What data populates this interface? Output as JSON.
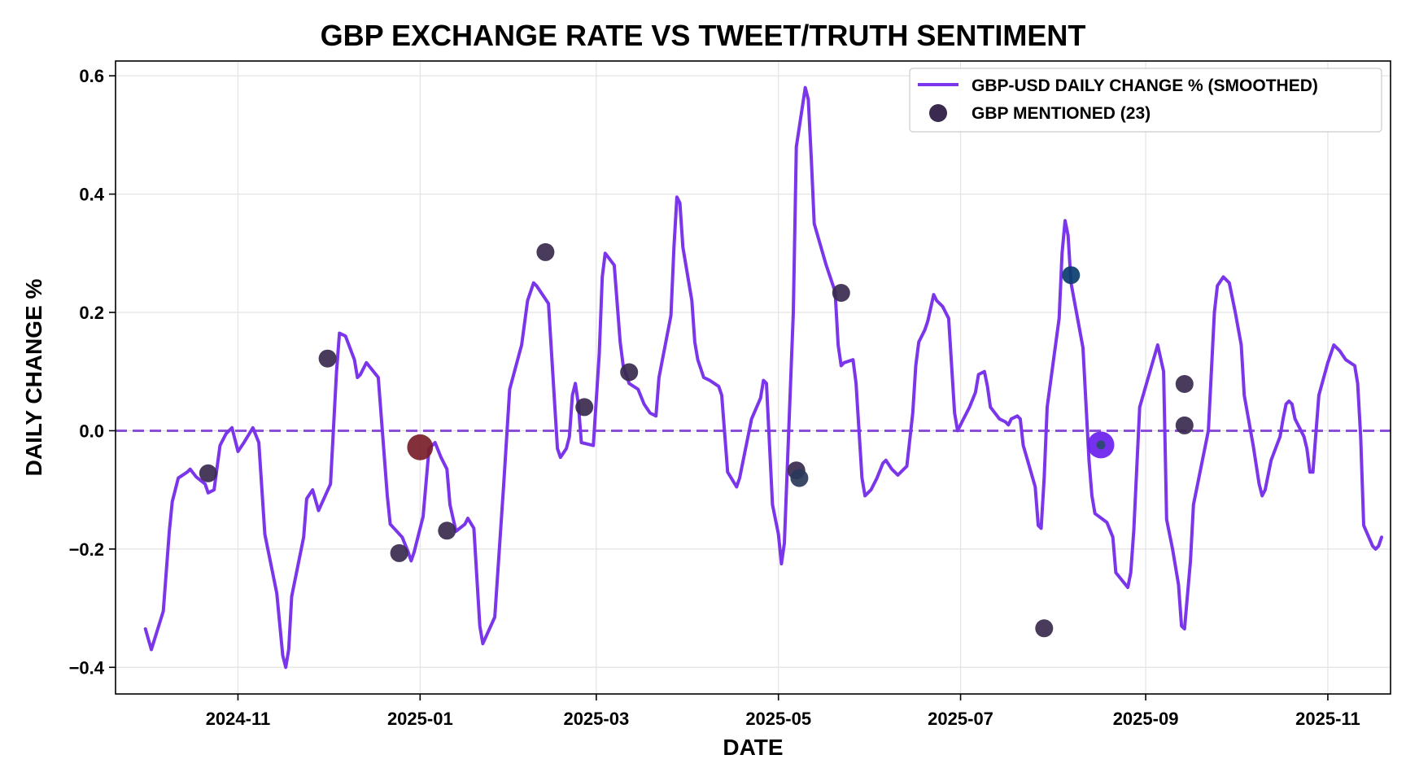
{
  "chart_data": {
    "type": "line",
    "title": "GBP EXCHANGE RATE VS TWEET/TRUTH SENTIMENT",
    "xlabel": "DATE",
    "ylabel": "DAILY CHANGE %",
    "ylim": [
      -0.445,
      0.625
    ],
    "xlim": [
      "2024-09-21",
      "2025-11-22"
    ],
    "grid": true,
    "legend_position": "top-right",
    "x_ticks": [
      {
        "date": "2024-11-01",
        "label": "2024-11"
      },
      {
        "date": "2025-01-01",
        "label": "2025-01"
      },
      {
        "date": "2025-03-01",
        "label": "2025-03"
      },
      {
        "date": "2025-05-01",
        "label": "2025-05"
      },
      {
        "date": "2025-07-01",
        "label": "2025-07"
      },
      {
        "date": "2025-09-01",
        "label": "2025-09"
      },
      {
        "date": "2025-11-01",
        "label": "2025-11"
      }
    ],
    "y_ticks": [
      {
        "value": 0.6,
        "label": "0.6"
      },
      {
        "value": 0.4,
        "label": "0.4"
      },
      {
        "value": 0.2,
        "label": "0.2"
      },
      {
        "value": 0.0,
        "label": "0.0"
      },
      {
        "value": -0.2,
        "label": "−0.2"
      },
      {
        "value": -0.4,
        "label": "−0.4"
      }
    ],
    "reference_line": {
      "y": 0.0,
      "style": "dashed",
      "color": "#8a4fd6"
    },
    "series": [
      {
        "name": "GBP-USD DAILY CHANGE % (SMOOTHED)",
        "legend_label": "GBP-USD DAILY CHANGE % (SMOOTHED)",
        "color": "#7b35ea",
        "points": [
          [
            "2024-10-01",
            -0.335
          ],
          [
            "2024-10-03",
            -0.37
          ],
          [
            "2024-10-07",
            -0.305
          ],
          [
            "2024-10-09",
            -0.17
          ],
          [
            "2024-10-10",
            -0.12
          ],
          [
            "2024-10-12",
            -0.08
          ],
          [
            "2024-10-15",
            -0.07
          ],
          [
            "2024-10-16",
            -0.065
          ],
          [
            "2024-10-18",
            -0.078
          ],
          [
            "2024-10-21",
            -0.09
          ],
          [
            "2024-10-22",
            -0.105
          ],
          [
            "2024-10-24",
            -0.1
          ],
          [
            "2024-10-26",
            -0.025
          ],
          [
            "2024-10-28",
            -0.005
          ],
          [
            "2024-10-30",
            0.005
          ],
          [
            "2024-11-01",
            -0.035
          ],
          [
            "2024-11-03",
            -0.02
          ],
          [
            "2024-11-06",
            0.005
          ],
          [
            "2024-11-08",
            -0.02
          ],
          [
            "2024-11-10",
            -0.175
          ],
          [
            "2024-11-14",
            -0.275
          ],
          [
            "2024-11-16",
            -0.38
          ],
          [
            "2024-11-17",
            -0.4
          ],
          [
            "2024-11-18",
            -0.37
          ],
          [
            "2024-11-19",
            -0.28
          ],
          [
            "2024-11-23",
            -0.18
          ],
          [
            "2024-11-24",
            -0.115
          ],
          [
            "2024-11-26",
            -0.1
          ],
          [
            "2024-11-28",
            -0.135
          ],
          [
            "2024-12-02",
            -0.09
          ],
          [
            "2024-12-04",
            0.1
          ],
          [
            "2024-12-05",
            0.165
          ],
          [
            "2024-12-07",
            0.16
          ],
          [
            "2024-12-10",
            0.12
          ],
          [
            "2024-12-11",
            0.09
          ],
          [
            "2024-12-12",
            0.095
          ],
          [
            "2024-12-14",
            0.115
          ],
          [
            "2024-12-18",
            0.09
          ],
          [
            "2024-12-21",
            -0.11
          ],
          [
            "2024-12-22",
            -0.158
          ],
          [
            "2024-12-26",
            -0.18
          ],
          [
            "2024-12-28",
            -0.205
          ],
          [
            "2024-12-29",
            -0.22
          ],
          [
            "2024-12-30",
            -0.205
          ],
          [
            "2025-01-02",
            -0.145
          ],
          [
            "2025-01-04",
            -0.03
          ],
          [
            "2025-01-06",
            -0.02
          ],
          [
            "2025-01-08",
            -0.045
          ],
          [
            "2025-01-10",
            -0.065
          ],
          [
            "2025-01-11",
            -0.125
          ],
          [
            "2025-01-13",
            -0.17
          ],
          [
            "2025-01-16",
            -0.158
          ],
          [
            "2025-01-17",
            -0.148
          ],
          [
            "2025-01-19",
            -0.165
          ],
          [
            "2025-01-21",
            -0.33
          ],
          [
            "2025-01-22",
            -0.36
          ],
          [
            "2025-01-26",
            -0.315
          ],
          [
            "2025-01-29",
            -0.09
          ],
          [
            "2025-01-31",
            0.07
          ],
          [
            "2025-02-04",
            0.145
          ],
          [
            "2025-02-06",
            0.22
          ],
          [
            "2025-02-08",
            0.25
          ],
          [
            "2025-02-09",
            0.245
          ],
          [
            "2025-02-13",
            0.215
          ],
          [
            "2025-02-15",
            0.05
          ],
          [
            "2025-02-16",
            -0.03
          ],
          [
            "2025-02-17",
            -0.045
          ],
          [
            "2025-02-19",
            -0.03
          ],
          [
            "2025-02-20",
            -0.01
          ],
          [
            "2025-02-21",
            0.06
          ],
          [
            "2025-02-22",
            0.08
          ],
          [
            "2025-02-23",
            0.045
          ],
          [
            "2025-02-24",
            -0.02
          ],
          [
            "2025-02-28",
            -0.025
          ],
          [
            "2025-03-02",
            0.13
          ],
          [
            "2025-03-03",
            0.26
          ],
          [
            "2025-03-04",
            0.3
          ],
          [
            "2025-03-07",
            0.28
          ],
          [
            "2025-03-09",
            0.15
          ],
          [
            "2025-03-10",
            0.11
          ],
          [
            "2025-03-12",
            0.08
          ],
          [
            "2025-03-15",
            0.07
          ],
          [
            "2025-03-17",
            0.045
          ],
          [
            "2025-03-19",
            0.03
          ],
          [
            "2025-03-21",
            0.025
          ],
          [
            "2025-03-22",
            0.09
          ],
          [
            "2025-03-26",
            0.195
          ],
          [
            "2025-03-27",
            0.31
          ],
          [
            "2025-03-28",
            0.395
          ],
          [
            "2025-03-29",
            0.385
          ],
          [
            "2025-03-30",
            0.31
          ],
          [
            "2025-04-02",
            0.22
          ],
          [
            "2025-04-03",
            0.15
          ],
          [
            "2025-04-04",
            0.12
          ],
          [
            "2025-04-06",
            0.09
          ],
          [
            "2025-04-08",
            0.085
          ],
          [
            "2025-04-11",
            0.075
          ],
          [
            "2025-04-12",
            0.06
          ],
          [
            "2025-04-14",
            -0.07
          ],
          [
            "2025-04-17",
            -0.095
          ],
          [
            "2025-04-18",
            -0.08
          ],
          [
            "2025-04-22",
            0.02
          ],
          [
            "2025-04-25",
            0.055
          ],
          [
            "2025-04-26",
            0.085
          ],
          [
            "2025-04-27",
            0.08
          ],
          [
            "2025-04-29",
            -0.125
          ],
          [
            "2025-05-01",
            -0.175
          ],
          [
            "2025-05-02",
            -0.225
          ],
          [
            "2025-05-03",
            -0.19
          ],
          [
            "2025-05-06",
            0.2
          ],
          [
            "2025-05-07",
            0.48
          ],
          [
            "2025-05-10",
            0.58
          ],
          [
            "2025-05-11",
            0.56
          ],
          [
            "2025-05-12",
            0.46
          ],
          [
            "2025-05-13",
            0.35
          ],
          [
            "2025-05-17",
            0.28
          ],
          [
            "2025-05-20",
            0.235
          ],
          [
            "2025-05-21",
            0.145
          ],
          [
            "2025-05-22",
            0.11
          ],
          [
            "2025-05-23",
            0.115
          ],
          [
            "2025-05-26",
            0.12
          ],
          [
            "2025-05-27",
            0.08
          ],
          [
            "2025-05-29",
            -0.08
          ],
          [
            "2025-05-30",
            -0.11
          ],
          [
            "2025-06-01",
            -0.1
          ],
          [
            "2025-06-03",
            -0.08
          ],
          [
            "2025-06-05",
            -0.055
          ],
          [
            "2025-06-06",
            -0.05
          ],
          [
            "2025-06-08",
            -0.065
          ],
          [
            "2025-06-10",
            -0.075
          ],
          [
            "2025-06-12",
            -0.065
          ],
          [
            "2025-06-13",
            -0.06
          ],
          [
            "2025-06-15",
            0.03
          ],
          [
            "2025-06-16",
            0.11
          ],
          [
            "2025-06-17",
            0.15
          ],
          [
            "2025-06-19",
            0.17
          ],
          [
            "2025-06-20",
            0.185
          ],
          [
            "2025-06-22",
            0.23
          ],
          [
            "2025-06-23",
            0.22
          ],
          [
            "2025-06-25",
            0.21
          ],
          [
            "2025-06-27",
            0.19
          ],
          [
            "2025-06-29",
            0.03
          ],
          [
            "2025-06-30",
            0.0
          ],
          [
            "2025-07-02",
            0.02
          ],
          [
            "2025-07-04",
            0.04
          ],
          [
            "2025-07-06",
            0.065
          ],
          [
            "2025-07-07",
            0.095
          ],
          [
            "2025-07-09",
            0.1
          ],
          [
            "2025-07-10",
            0.075
          ],
          [
            "2025-07-11",
            0.04
          ],
          [
            "2025-07-14",
            0.02
          ],
          [
            "2025-07-16",
            0.015
          ],
          [
            "2025-07-17",
            0.01
          ],
          [
            "2025-07-18",
            0.02
          ],
          [
            "2025-07-20",
            0.025
          ],
          [
            "2025-07-21",
            0.02
          ],
          [
            "2025-07-22",
            -0.025
          ],
          [
            "2025-07-24",
            -0.06
          ],
          [
            "2025-07-26",
            -0.095
          ],
          [
            "2025-07-27",
            -0.16
          ],
          [
            "2025-07-28",
            -0.165
          ],
          [
            "2025-07-29",
            -0.08
          ],
          [
            "2025-07-30",
            0.04
          ],
          [
            "2025-08-03",
            0.19
          ],
          [
            "2025-08-04",
            0.3
          ],
          [
            "2025-08-05",
            0.355
          ],
          [
            "2025-08-06",
            0.33
          ],
          [
            "2025-08-07",
            0.25
          ],
          [
            "2025-08-11",
            0.14
          ],
          [
            "2025-08-13",
            -0.05
          ],
          [
            "2025-08-14",
            -0.11
          ],
          [
            "2025-08-15",
            -0.14
          ],
          [
            "2025-08-19",
            -0.155
          ],
          [
            "2025-08-21",
            -0.18
          ],
          [
            "2025-08-22",
            -0.24
          ],
          [
            "2025-08-26",
            -0.265
          ],
          [
            "2025-08-27",
            -0.24
          ],
          [
            "2025-08-28",
            -0.17
          ],
          [
            "2025-08-30",
            0.04
          ],
          [
            "2025-09-03",
            0.11
          ],
          [
            "2025-09-05",
            0.145
          ],
          [
            "2025-09-07",
            0.1
          ],
          [
            "2025-09-08",
            -0.15
          ],
          [
            "2025-09-10",
            -0.2
          ],
          [
            "2025-09-12",
            -0.26
          ],
          [
            "2025-09-13",
            -0.33
          ],
          [
            "2025-09-14",
            -0.335
          ],
          [
            "2025-09-16",
            -0.22
          ],
          [
            "2025-09-17",
            -0.125
          ],
          [
            "2025-09-22",
            0.0
          ],
          [
            "2025-09-24",
            0.2
          ],
          [
            "2025-09-25",
            0.245
          ],
          [
            "2025-09-27",
            0.26
          ],
          [
            "2025-09-29",
            0.25
          ],
          [
            "2025-10-01",
            0.2
          ],
          [
            "2025-10-03",
            0.145
          ],
          [
            "2025-10-04",
            0.06
          ],
          [
            "2025-10-07",
            -0.025
          ],
          [
            "2025-10-09",
            -0.09
          ],
          [
            "2025-10-10",
            -0.11
          ],
          [
            "2025-10-11",
            -0.1
          ],
          [
            "2025-10-13",
            -0.05
          ],
          [
            "2025-10-16",
            -0.01
          ],
          [
            "2025-10-17",
            0.02
          ],
          [
            "2025-10-18",
            0.045
          ],
          [
            "2025-10-19",
            0.05
          ],
          [
            "2025-10-20",
            0.045
          ],
          [
            "2025-10-21",
            0.02
          ],
          [
            "2025-10-24",
            -0.01
          ],
          [
            "2025-10-25",
            -0.03
          ],
          [
            "2025-10-26",
            -0.07
          ],
          [
            "2025-10-27",
            -0.07
          ],
          [
            "2025-10-29",
            0.06
          ],
          [
            "2025-11-01",
            0.115
          ],
          [
            "2025-11-03",
            0.145
          ],
          [
            "2025-11-05",
            0.135
          ],
          [
            "2025-11-07",
            0.12
          ]
        ]
      }
    ],
    "tail_points": [
      [
        "2025-11-10",
        0.11
      ],
      [
        "2025-11-11",
        0.08
      ],
      [
        "2025-11-12",
        -0.01
      ],
      [
        "2025-11-13",
        -0.16
      ],
      [
        "2025-11-16",
        -0.195
      ],
      [
        "2025-11-17",
        -0.2
      ],
      [
        "2025-11-18",
        -0.195
      ],
      [
        "2025-11-19",
        -0.18
      ]
    ],
    "mentions": {
      "legend_label": "GBP MENTIONED (23)",
      "legend_color": "#3b2a50",
      "points": [
        {
          "date": "2024-10-22",
          "value": -0.072,
          "color": "#3a2a4e",
          "size": 1.0
        },
        {
          "date": "2024-12-01",
          "value": 0.122,
          "color": "#3a2a4e",
          "size": 1.0
        },
        {
          "date": "2024-12-25",
          "value": -0.207,
          "color": "#3a2a4e",
          "size": 1.0
        },
        {
          "date": "2025-01-01",
          "value": -0.028,
          "color": "#7a1e2a",
          "size": 1.45
        },
        {
          "date": "2025-01-10",
          "value": -0.169,
          "color": "#3a2a4e",
          "size": 1.0
        },
        {
          "date": "2025-02-12",
          "value": 0.302,
          "color": "#3a2a4e",
          "size": 1.0
        },
        {
          "date": "2025-02-25",
          "value": 0.04,
          "color": "#3a2a4e",
          "size": 1.0
        },
        {
          "date": "2025-03-12",
          "value": 0.099,
          "color": "#3a2a4e",
          "size": 1.0
        },
        {
          "date": "2025-05-07",
          "value": -0.067,
          "color": "#3a2a4e",
          "size": 1.0
        },
        {
          "date": "2025-05-08",
          "value": -0.08,
          "color": "#2a3a5a",
          "size": 1.0
        },
        {
          "date": "2025-05-22",
          "value": 0.233,
          "color": "#3a2a4e",
          "size": 1.0
        },
        {
          "date": "2025-07-29",
          "value": -0.334,
          "color": "#3a2a4e",
          "size": 1.0
        },
        {
          "date": "2025-08-07",
          "value": 0.263,
          "color": "#0b3d6e",
          "size": 1.0
        },
        {
          "date": "2025-08-17",
          "value": -0.024,
          "color": "#6a20ee",
          "size": 1.5
        },
        {
          "date": "2025-08-17",
          "value": -0.024,
          "color": "#2a4a6a",
          "size": 0.5
        },
        {
          "date": "2025-09-14",
          "value": 0.079,
          "color": "#3a2a4e",
          "size": 1.0
        },
        {
          "date": "2025-09-14",
          "value": 0.009,
          "color": "#3a2a4e",
          "size": 1.0
        }
      ]
    }
  }
}
